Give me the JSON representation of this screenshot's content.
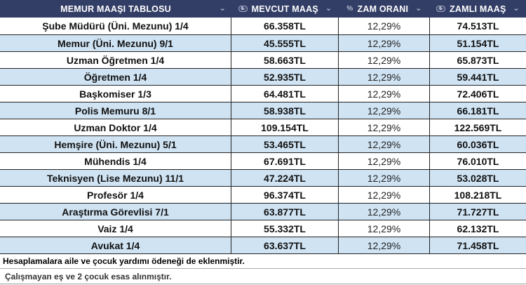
{
  "table": {
    "title": "MEMUR MAAŞI TABLOSU",
    "columns": [
      {
        "label": "MEVCUT MAAŞ",
        "icon": "lira-badge"
      },
      {
        "label": "ZAM ORANI",
        "icon": "percent"
      },
      {
        "label": "ZAMLI MAAŞ",
        "icon": "lira-badge"
      }
    ],
    "rows": [
      {
        "title": "Şube Müdürü (Üni. Mezunu) 1/4",
        "current": "66.358TL",
        "rate": "12,29%",
        "new": "74.513TL"
      },
      {
        "title": "Memur (Üni. Mezunu) 9/1",
        "current": "45.555TL",
        "rate": "12,29%",
        "new": "51.154TL"
      },
      {
        "title": "Uzman Öğretmen 1/4",
        "current": "58.663TL",
        "rate": "12,29%",
        "new": "65.873TL"
      },
      {
        "title": "Öğretmen 1/4",
        "current": "52.935TL",
        "rate": "12,29%",
        "new": "59.441TL"
      },
      {
        "title": "Başkomiser 1/3",
        "current": "64.481TL",
        "rate": "12,29%",
        "new": "72.406TL"
      },
      {
        "title": "Polis Memuru 8/1",
        "current": "58.938TL",
        "rate": "12,29%",
        "new": "66.181TL"
      },
      {
        "title": "Uzman Doktor 1/4",
        "current": "109.154TL",
        "rate": "12,29%",
        "new": "122.569TL"
      },
      {
        "title": "Hemşire (Üni. Mezunu) 5/1",
        "current": "53.465TL",
        "rate": "12,29%",
        "new": "60.036TL"
      },
      {
        "title": "Mühendis 1/4",
        "current": "67.691TL",
        "rate": "12,29%",
        "new": "76.010TL"
      },
      {
        "title": "Teknisyen (Lise Mezunu) 11/1",
        "current": "47.224TL",
        "rate": "12,29%",
        "new": "53.028TL"
      },
      {
        "title": "Profesör 1/4",
        "current": "96.374TL",
        "rate": "12,29%",
        "new": "108.218TL"
      },
      {
        "title": "Araştırma Görevlisi 7/1",
        "current": "63.877TL",
        "rate": "12,29%",
        "new": "71.727TL"
      },
      {
        "title": "Vaiz 1/4",
        "current": "55.332TL",
        "rate": "12,29%",
        "new": "62.132TL"
      },
      {
        "title": "Avukat 1/4",
        "current": "63.637TL",
        "rate": "12,29%",
        "new": "71.458TL"
      }
    ]
  },
  "icons": {
    "chevron_down": "⌄",
    "percent": "%",
    "lira": "₺"
  },
  "colors": {
    "header_bg": "#333e66",
    "header_text": "#ffffff",
    "alt_row_bg": "#cfe3f3",
    "border": "#242424"
  },
  "footer": {
    "notes": [
      "Hesaplamalara aile ve çocuk yardımı ödeneği de eklenmiştir.",
      "Çalışmayan eş ve 2 çocuk esas alınmıştır."
    ]
  }
}
